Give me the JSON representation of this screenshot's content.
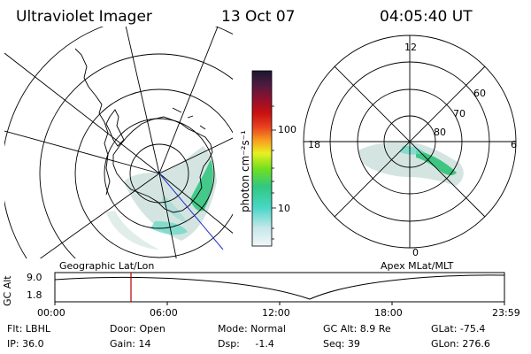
{
  "header": {
    "title": "Ultraviolet Imager",
    "date": "13 Oct 07",
    "time": "04:05:40 UT"
  },
  "colorbar": {
    "unit_label": "photon cm⁻²s⁻¹",
    "ticks": [
      "100",
      "10"
    ]
  },
  "left_map": {
    "label": "Geographic Lat/Lon"
  },
  "right_map": {
    "label": "Apex MLat/MLT",
    "mlt_labels": [
      "12",
      "18",
      "6",
      "0"
    ],
    "lat_labels": [
      "60",
      "70",
      "80"
    ]
  },
  "altitude_plot": {
    "ylabel": "GC Alt",
    "yticks": [
      "9.0",
      "1.8"
    ],
    "xticks": [
      "00:00",
      "06:00",
      "12:00",
      "18:00",
      "23:59"
    ],
    "marker_time": "04:05:40"
  },
  "info": {
    "flt": "Flt: LBHL",
    "ip": "IP: 36.0",
    "door": "Door: Open",
    "gain": "Gain: 14",
    "mode": "Mode: Normal",
    "dsp": "Dsp:     -1.4",
    "gcalt": "GC Alt: 8.9 Re",
    "seq": "Seq: 39",
    "glat": "GLat: -75.4",
    "glon": "GLon: 276.6"
  },
  "colors": {
    "marker": "#b00000",
    "track": "#2233cc",
    "auroral_low": "#c8ddd8",
    "auroral_high": "#22c070"
  }
}
